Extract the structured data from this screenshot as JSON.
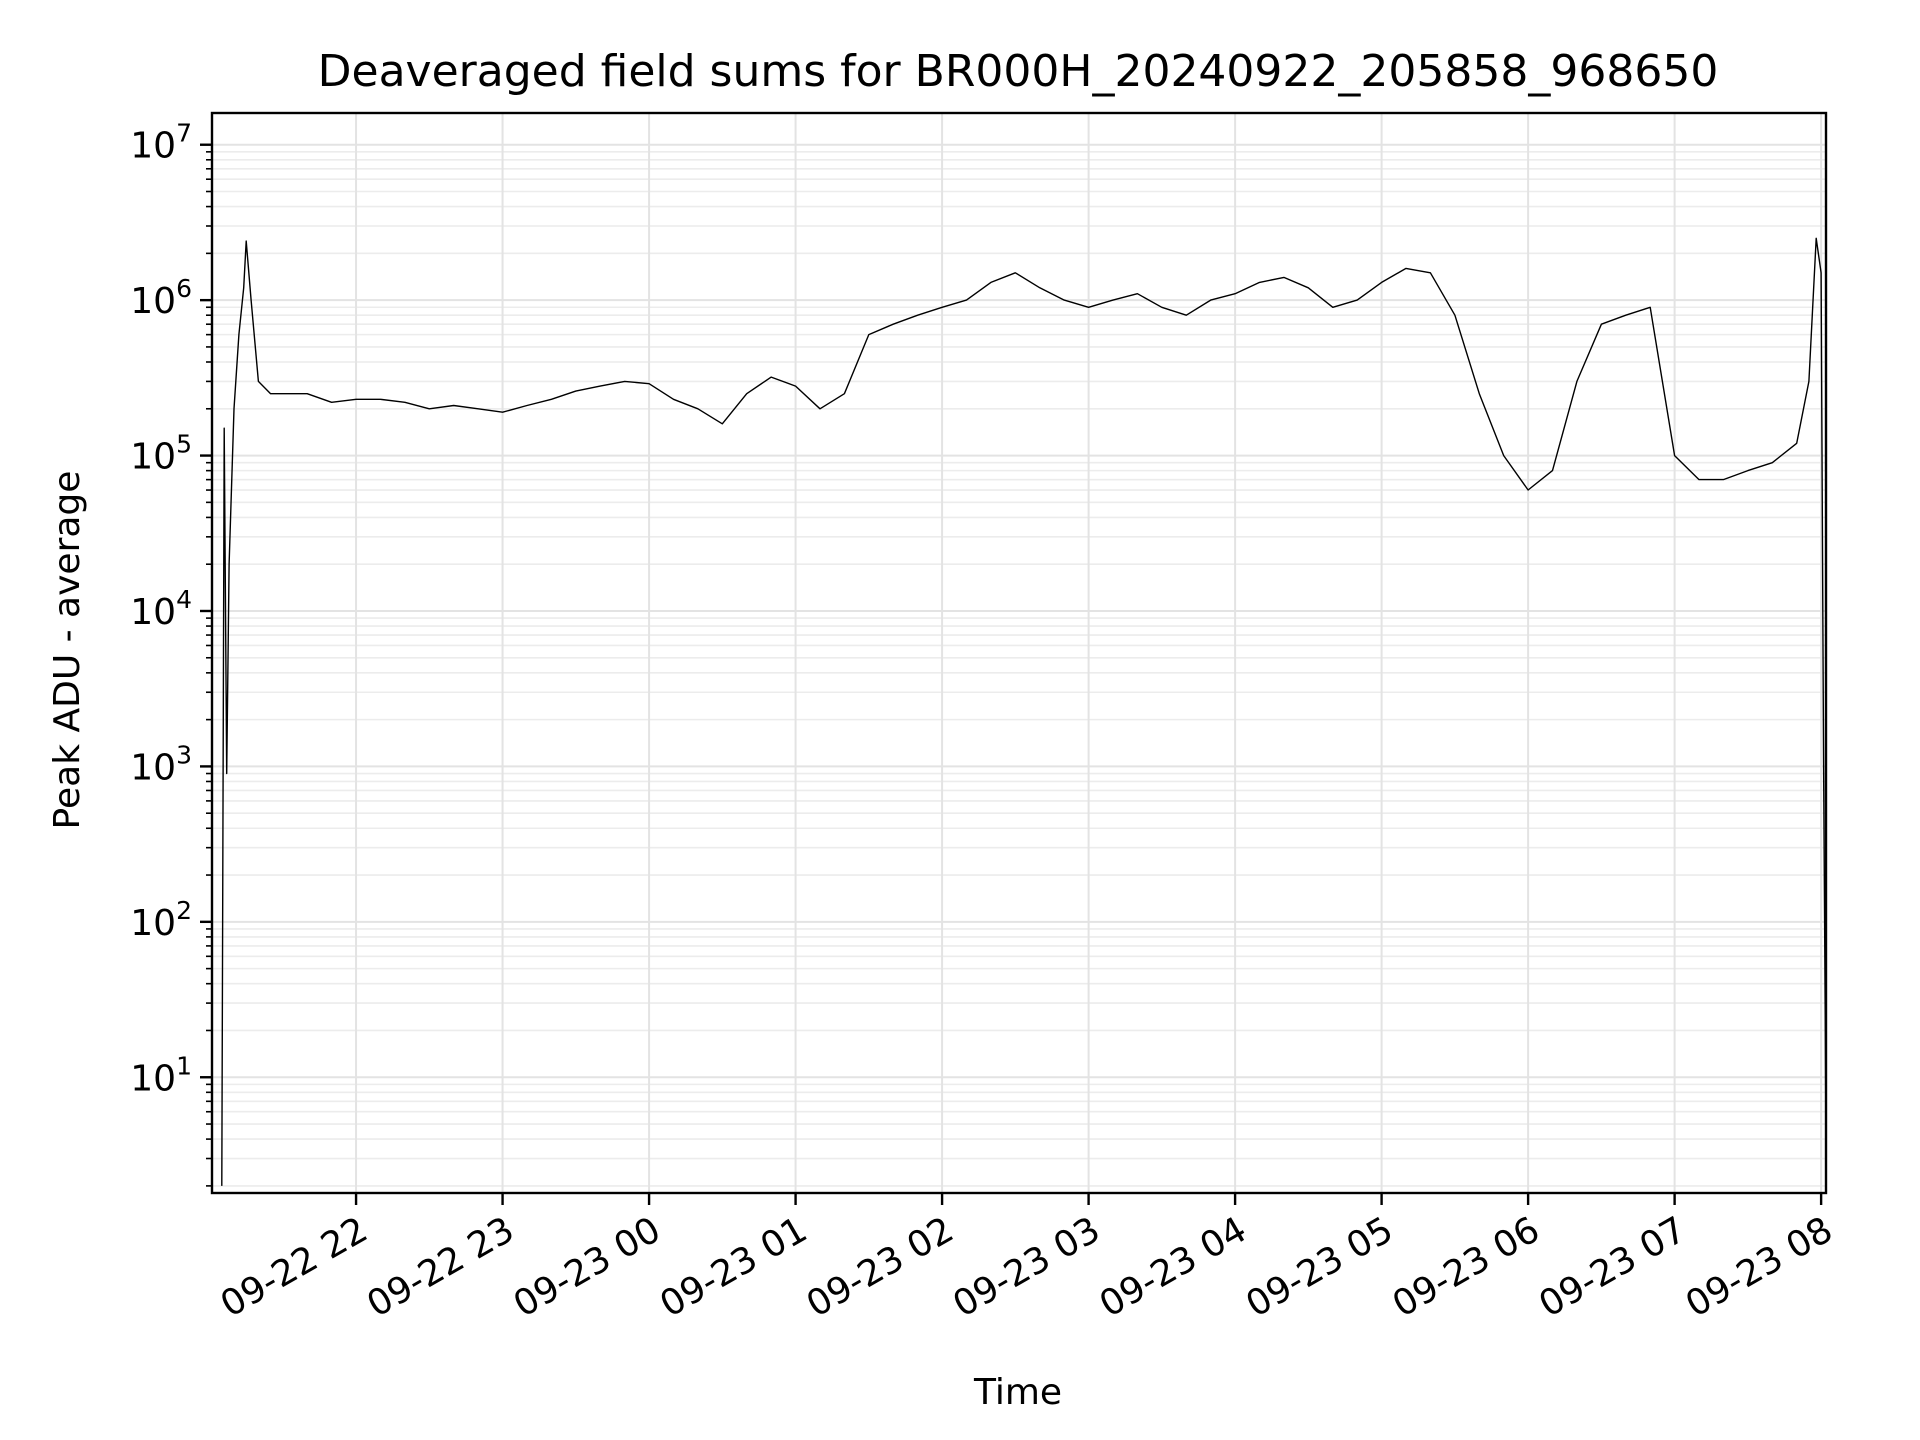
{
  "chart_data": {
    "type": "line",
    "title": "Deaveraged field sums for BR000H_20240922_205858_968650",
    "xlabel": "Time",
    "ylabel": "Peak ADU - average",
    "yscale": "log",
    "ylim": [
      1.8,
      16000000
    ],
    "xlim": [
      "2024-09-22 21:01",
      "2024-09-23 08:02"
    ],
    "grid": true,
    "line_color": "#000000",
    "x_ticks": [
      "2024-09-22 22:00",
      "2024-09-22 23:00",
      "2024-09-23 00:00",
      "2024-09-23 01:00",
      "2024-09-23 02:00",
      "2024-09-23 03:00",
      "2024-09-23 04:00",
      "2024-09-23 05:00",
      "2024-09-23 06:00",
      "2024-09-23 07:00",
      "2024-09-23 08:00"
    ],
    "x_tick_labels": [
      "09-22 22",
      "09-22 23",
      "09-23 00",
      "09-23 01",
      "09-23 02",
      "09-23 03",
      "09-23 04",
      "09-23 05",
      "09-23 06",
      "09-23 07",
      "09-23 08"
    ],
    "y_ticks": [
      10,
      100,
      1000,
      10000,
      100000,
      1000000,
      10000000
    ],
    "y_tick_labels": [
      [
        "10",
        "1"
      ],
      [
        "10",
        "2"
      ],
      [
        "10",
        "3"
      ],
      [
        "10",
        "4"
      ],
      [
        "10",
        "5"
      ],
      [
        "10",
        "6"
      ],
      [
        "10",
        "7"
      ]
    ],
    "series": [
      {
        "x": [
          "2024-09-22 21:05",
          "2024-09-22 21:06",
          "2024-09-22 21:07",
          "2024-09-22 21:08",
          "2024-09-22 21:10",
          "2024-09-22 21:12",
          "2024-09-22 21:14",
          "2024-09-22 21:15",
          "2024-09-22 21:17",
          "2024-09-22 21:20",
          "2024-09-22 21:25",
          "2024-09-22 21:30",
          "2024-09-22 21:40",
          "2024-09-22 21:50",
          "2024-09-22 22:00",
          "2024-09-22 22:10",
          "2024-09-22 22:20",
          "2024-09-22 22:30",
          "2024-09-22 22:40",
          "2024-09-22 22:50",
          "2024-09-22 23:00",
          "2024-09-22 23:10",
          "2024-09-22 23:20",
          "2024-09-22 23:30",
          "2024-09-22 23:40",
          "2024-09-22 23:50",
          "2024-09-23 00:00",
          "2024-09-23 00:10",
          "2024-09-23 00:20",
          "2024-09-23 00:30",
          "2024-09-23 00:40",
          "2024-09-23 00:50",
          "2024-09-23 01:00",
          "2024-09-23 01:10",
          "2024-09-23 01:20",
          "2024-09-23 01:30",
          "2024-09-23 01:40",
          "2024-09-23 01:50",
          "2024-09-23 02:00",
          "2024-09-23 02:10",
          "2024-09-23 02:20",
          "2024-09-23 02:30",
          "2024-09-23 02:40",
          "2024-09-23 02:50",
          "2024-09-23 03:00",
          "2024-09-23 03:10",
          "2024-09-23 03:20",
          "2024-09-23 03:30",
          "2024-09-23 03:40",
          "2024-09-23 03:50",
          "2024-09-23 04:00",
          "2024-09-23 04:10",
          "2024-09-23 04:20",
          "2024-09-23 04:30",
          "2024-09-23 04:40",
          "2024-09-23 04:50",
          "2024-09-23 05:00",
          "2024-09-23 05:10",
          "2024-09-23 05:20",
          "2024-09-23 05:30",
          "2024-09-23 05:40",
          "2024-09-23 05:50",
          "2024-09-23 06:00",
          "2024-09-23 06:10",
          "2024-09-23 06:20",
          "2024-09-23 06:30",
          "2024-09-23 06:40",
          "2024-09-23 06:50",
          "2024-09-23 07:00",
          "2024-09-23 07:10",
          "2024-09-23 07:20",
          "2024-09-23 07:30",
          "2024-09-23 07:40",
          "2024-09-23 07:50",
          "2024-09-23 07:55",
          "2024-09-23 07:58",
          "2024-09-23 08:00",
          "2024-09-23 08:01",
          "2024-09-23 08:02"
        ],
        "y": [
          2,
          150000,
          900,
          20000,
          200000,
          600000,
          1200000,
          2400000,
          1000000,
          300000,
          250000,
          250000,
          250000,
          220000,
          230000,
          230000,
          220000,
          200000,
          210000,
          200000,
          190000,
          210000,
          230000,
          260000,
          280000,
          300000,
          290000,
          230000,
          200000,
          160000,
          250000,
          320000,
          280000,
          200000,
          250000,
          600000,
          700000,
          800000,
          900000,
          1000000,
          1300000,
          1500000,
          1200000,
          1000000,
          900000,
          1000000,
          1100000,
          900000,
          800000,
          1000000,
          1100000,
          1300000,
          1400000,
          1200000,
          900000,
          1000000,
          1300000,
          1600000,
          1500000,
          800000,
          250000,
          100000,
          60000,
          80000,
          300000,
          700000,
          800000,
          900000,
          100000,
          70000,
          70000,
          80000,
          90000,
          120000,
          300000,
          2500000,
          1500000,
          1000,
          4
        ]
      }
    ]
  }
}
